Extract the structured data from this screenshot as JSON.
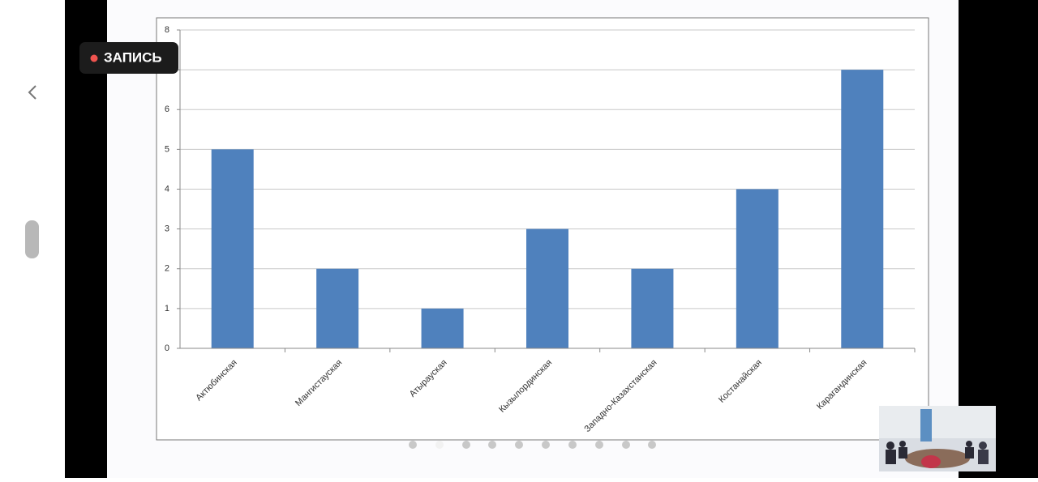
{
  "recording_label": "ЗАПИСЬ",
  "chart_data": {
    "type": "bar",
    "categories": [
      "Актюбинская",
      "Мангистауская",
      "Атырауская",
      "Кызылординская",
      "Западно-Казахстанская",
      "Костанайская",
      "Карагандинская"
    ],
    "values": [
      5,
      2,
      1,
      3,
      2,
      4,
      7
    ],
    "color": "#4f81bd",
    "ylim": [
      0,
      8
    ],
    "yticks": [
      0,
      1,
      2,
      3,
      4,
      5,
      6,
      {
        "value": 7,
        "label": null
      },
      8
    ],
    "grid": true
  }
}
